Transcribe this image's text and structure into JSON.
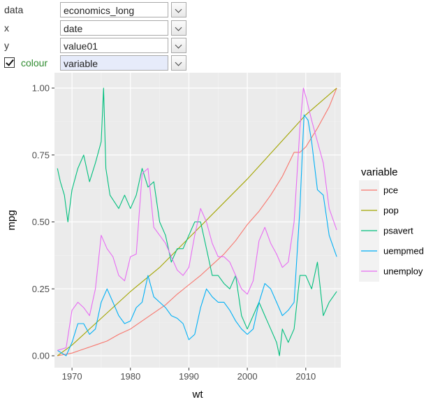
{
  "controls": {
    "data": {
      "label": "data",
      "value": "economics_long"
    },
    "x": {
      "label": "x",
      "value": "date"
    },
    "y": {
      "label": "y",
      "value": "value01"
    },
    "colour": {
      "label": "colour",
      "value": "variable",
      "checked": true
    }
  },
  "chart_data": {
    "type": "line",
    "xlabel": "wt",
    "ylabel": "mpg",
    "xlim": [
      1967,
      2016
    ],
    "ylim": [
      0,
      1
    ],
    "x_ticks": [
      "1970",
      "1980",
      "1990",
      "2000",
      "2010"
    ],
    "y_ticks": [
      "0.00",
      "0.25",
      "0.50",
      "0.75",
      "1.00"
    ],
    "grid": true,
    "legend_title": "variable",
    "legend_position": "right",
    "series": [
      {
        "name": "pce",
        "color": "#F8766D",
        "x": [
          1967.5,
          1970,
          1972,
          1974,
          1976,
          1978,
          1980,
          1982,
          1984,
          1986,
          1988,
          1990,
          1992,
          1994,
          1996,
          1998,
          2000,
          2002,
          2004,
          2006,
          2008,
          2009,
          2010,
          2012,
          2014,
          2015.3
        ],
        "y": [
          0.0,
          0.01,
          0.025,
          0.04,
          0.055,
          0.08,
          0.1,
          0.13,
          0.16,
          0.19,
          0.23,
          0.265,
          0.3,
          0.34,
          0.38,
          0.43,
          0.49,
          0.54,
          0.6,
          0.67,
          0.76,
          0.76,
          0.78,
          0.85,
          0.93,
          1.0
        ]
      },
      {
        "name": "pop",
        "color": "#A3A500",
        "x": [
          1967.5,
          1970,
          1975,
          1980,
          1985,
          1990,
          1995,
          2000,
          2005,
          2010,
          2015.3
        ],
        "y": [
          0.0,
          0.04,
          0.14,
          0.24,
          0.33,
          0.44,
          0.55,
          0.66,
          0.78,
          0.9,
          1.0
        ]
      },
      {
        "name": "psavert",
        "color": "#00BF7D",
        "x": [
          1967.5,
          1968,
          1968.7,
          1969.3,
          1970,
          1971,
          1972,
          1973,
          1974,
          1975,
          1975.4,
          1975.8,
          1976.5,
          1978,
          1979,
          1980,
          1981,
          1982,
          1983,
          1984,
          1985,
          1986,
          1987,
          1988,
          1989,
          1990,
          1991,
          1992,
          1993,
          1994,
          1995,
          1996,
          1997,
          1998,
          1999,
          2000,
          2001,
          2002,
          2003,
          2004,
          2005,
          2005.5,
          2006,
          2007,
          2008,
          2008.5,
          2009,
          2010,
          2011,
          2012,
          2013,
          2014,
          2015.3
        ],
        "y": [
          0.7,
          0.65,
          0.6,
          0.5,
          0.62,
          0.7,
          0.75,
          0.65,
          0.72,
          0.8,
          1.0,
          0.7,
          0.6,
          0.55,
          0.6,
          0.55,
          0.6,
          0.7,
          0.63,
          0.65,
          0.5,
          0.45,
          0.35,
          0.4,
          0.4,
          0.45,
          0.5,
          0.5,
          0.4,
          0.3,
          0.3,
          0.27,
          0.25,
          0.3,
          0.15,
          0.1,
          0.15,
          0.2,
          0.15,
          0.1,
          0.05,
          0.0,
          0.1,
          0.05,
          0.1,
          0.2,
          0.3,
          0.3,
          0.25,
          0.35,
          0.15,
          0.2,
          0.24
        ]
      },
      {
        "name": "uempmed",
        "color": "#00B0F6",
        "x": [
          1967.5,
          1969,
          1970,
          1971,
          1972,
          1973,
          1974,
          1975,
          1976,
          1977,
          1978,
          1979,
          1980,
          1981,
          1982,
          1983,
          1984,
          1985,
          1986,
          1987,
          1988,
          1989,
          1990,
          1991,
          1992,
          1993,
          1994,
          1995,
          1996,
          1997,
          1998,
          1999,
          2000,
          2001,
          2002,
          2003,
          2004,
          2005,
          2006,
          2007,
          2008,
          2009,
          2009.7,
          2010.4,
          2011,
          2012,
          2013,
          2014,
          2015.3
        ],
        "y": [
          0.02,
          0.0,
          0.05,
          0.12,
          0.12,
          0.08,
          0.1,
          0.2,
          0.25,
          0.2,
          0.15,
          0.12,
          0.13,
          0.18,
          0.2,
          0.3,
          0.22,
          0.2,
          0.18,
          0.15,
          0.14,
          0.12,
          0.06,
          0.08,
          0.18,
          0.25,
          0.22,
          0.2,
          0.2,
          0.17,
          0.13,
          0.1,
          0.08,
          0.1,
          0.2,
          0.27,
          0.25,
          0.2,
          0.15,
          0.17,
          0.2,
          0.55,
          0.9,
          0.88,
          0.8,
          0.62,
          0.6,
          0.45,
          0.37
        ]
      },
      {
        "name": "unemploy",
        "color": "#E76BF3",
        "x": [
          1967.5,
          1969,
          1970,
          1971,
          1972,
          1973,
          1974,
          1975,
          1976,
          1977,
          1978,
          1979,
          1980,
          1981,
          1982,
          1983,
          1984,
          1985,
          1986,
          1987,
          1988,
          1989,
          1990,
          1991,
          1992,
          1993,
          1994,
          1995,
          1996,
          1997,
          1998,
          1999,
          2000,
          2001,
          2002,
          2003,
          2004,
          2005,
          2006,
          2007,
          2008,
          2009,
          2009.6,
          2010,
          2011,
          2012,
          2013,
          2014,
          2015.3
        ],
        "y": [
          0.02,
          0.03,
          0.17,
          0.2,
          0.18,
          0.15,
          0.25,
          0.45,
          0.4,
          0.37,
          0.3,
          0.28,
          0.37,
          0.38,
          0.68,
          0.7,
          0.48,
          0.45,
          0.42,
          0.37,
          0.32,
          0.3,
          0.33,
          0.45,
          0.55,
          0.5,
          0.42,
          0.37,
          0.37,
          0.35,
          0.3,
          0.25,
          0.23,
          0.28,
          0.43,
          0.48,
          0.42,
          0.38,
          0.33,
          0.35,
          0.5,
          0.85,
          1.0,
          0.97,
          0.88,
          0.8,
          0.72,
          0.55,
          0.47
        ]
      }
    ]
  }
}
